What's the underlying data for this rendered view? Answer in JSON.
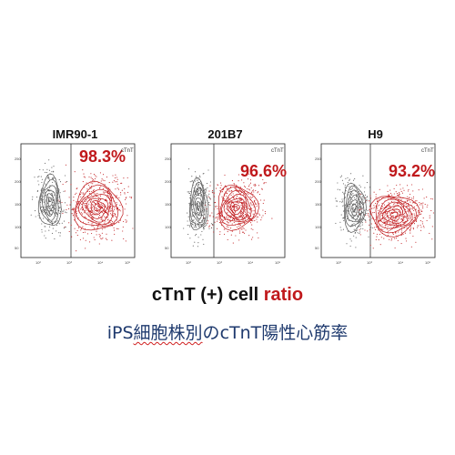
{
  "chart_data": [
    {
      "type": "scatter",
      "title": "IMR90-1",
      "annotation": "98.3%",
      "marker_label": "cTnT",
      "y_ticks": [
        "250",
        "200",
        "150",
        "100",
        "50"
      ],
      "x_ticks": [
        "10²",
        "10³",
        "10⁴",
        "10⁵"
      ]
    },
    {
      "type": "scatter",
      "title": "201B7",
      "annotation": "96.6%",
      "marker_label": "cTnT",
      "y_ticks": [
        "250",
        "200",
        "150",
        "100",
        "50"
      ],
      "x_ticks": [
        "10²",
        "10³",
        "10⁴",
        "10⁵"
      ]
    },
    {
      "type": "scatter",
      "title": "H9",
      "annotation": "93.2%",
      "marker_label": "cTnT",
      "y_ticks": [
        "250",
        "200",
        "150",
        "100",
        "50"
      ],
      "x_ticks": [
        "10²",
        "10³",
        "10⁴",
        "10⁵"
      ]
    }
  ],
  "caption": {
    "main_prefix": "cTnT (+) cell ",
    "main_highlight": "ratio"
  },
  "subtitle": {
    "pre": "iPS",
    "underlined": "細胞株別",
    "mid": "の",
    "post": "cTnT陽性心筋率"
  },
  "colors": {
    "positive": "#c0191c",
    "negative": "#555555",
    "subtitle": "#1f3a6e"
  }
}
